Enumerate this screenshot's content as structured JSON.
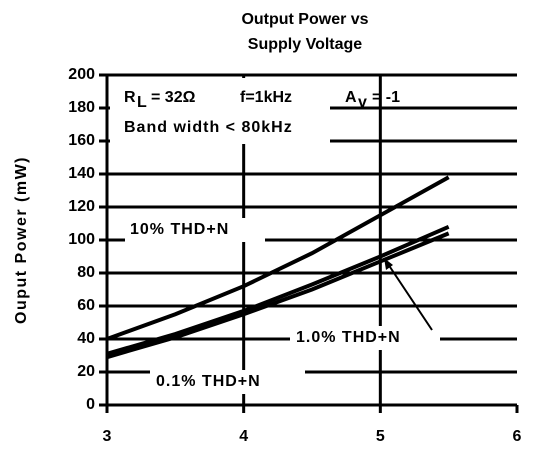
{
  "chart_data": {
    "type": "line",
    "title": [
      "Output Power vs",
      "Supply Voltage"
    ],
    "y_label": "Ouput Power (mW)",
    "conditions": [
      "R",
      "L",
      "= 32Ω",
      "f=1kHz",
      "A",
      "v",
      "= -1"
    ],
    "bandwidth": "Band width < 80kHz",
    "xlim": [
      3,
      6
    ],
    "xticks": [
      3,
      4,
      5,
      6
    ],
    "ylim": [
      0,
      200
    ],
    "yticks": [
      0,
      20,
      40,
      60,
      80,
      100,
      120,
      140,
      160,
      180,
      200
    ],
    "grid": true,
    "series": [
      {
        "name": "10% THD+N",
        "color": "#000000",
        "x": [
          3,
          3.5,
          4,
          4.5,
          5,
          5.5
        ],
        "values": [
          40,
          55,
          72,
          92,
          115,
          138
        ]
      },
      {
        "name": "1.0% THD+N",
        "color": "#000000",
        "x": [
          3,
          3.5,
          4,
          4.5,
          5,
          5.5
        ],
        "values": [
          31,
          43,
          57,
          73,
          90,
          108
        ]
      },
      {
        "name": "0.1% THD+N",
        "color": "#000000",
        "x": [
          3,
          3.5,
          4,
          4.5,
          5,
          5.5
        ],
        "values": [
          29,
          41,
          55,
          70,
          87,
          104
        ]
      }
    ]
  }
}
